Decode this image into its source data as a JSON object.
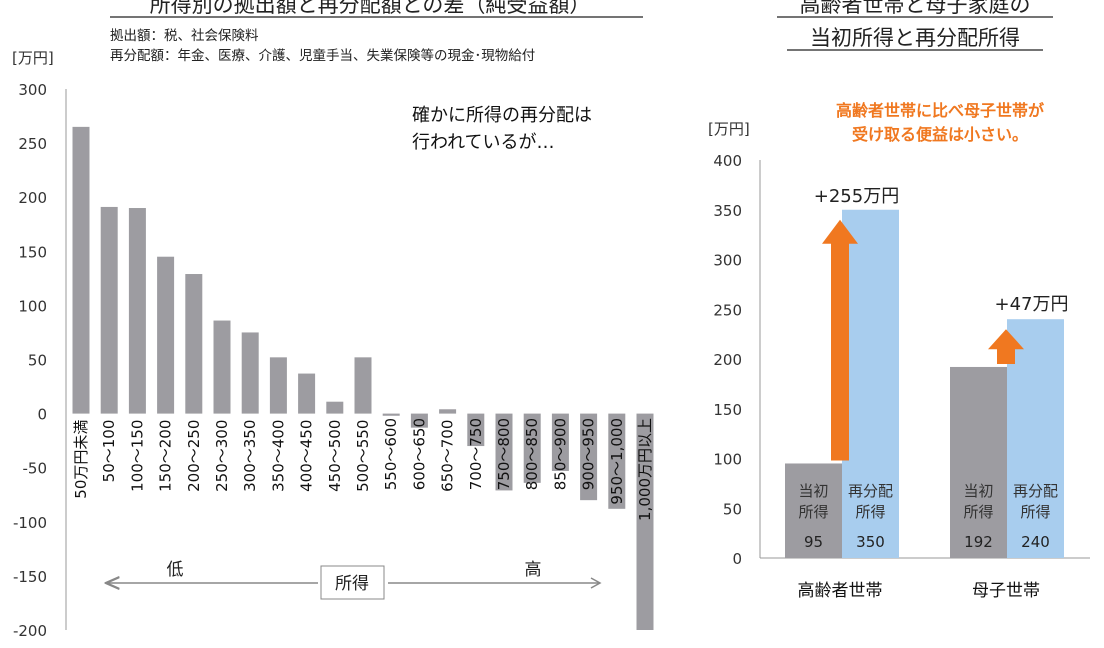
{
  "left_chart": {
    "title": "所得別の拠出額と再分配額との差（純受益額）",
    "note_contrib": "拠出額：税、社会保険料",
    "note_redistrib": "再分配額：年金、医療、介護、児童手当、失業保険等の現金･現物給付",
    "unit": "[万円]",
    "callout_line1": "確かに所得の再分配は",
    "callout_line2": "行われているが…",
    "arrow_low": "低",
    "arrow_high": "高",
    "arrow_center": "所得",
    "bar_color": "#9d9ca1"
  },
  "right_chart": {
    "title_line1": "高齢者世帯と母子家庭の",
    "title_line2": "当初所得と再分配所得",
    "unit": "[万円]",
    "highlight_line1": "高齢者世帯に比べ母子世帯が",
    "highlight_line2": "受け取る便益は小さい。",
    "highlight_color": "#f07820",
    "initial_color": "#9d9ca1",
    "redistrib_color": "#a8cdee"
  },
  "chart_data": [
    {
      "type": "bar",
      "categories": [
        "50万円未満",
        "50～100",
        "100～150",
        "150～200",
        "200～250",
        "250～300",
        "300～350",
        "350～400",
        "400～450",
        "450～500",
        "500～550",
        "550～600",
        "600～650",
        "650～700",
        "700～750",
        "750～800",
        "800～850",
        "850～900",
        "900～950",
        "950～1,000",
        "1,000万円以上"
      ],
      "values": [
        265,
        191,
        190,
        145,
        129,
        86,
        75,
        52,
        37,
        11,
        52,
        -2,
        -13,
        4,
        -30,
        -71,
        -64,
        -53,
        -80,
        -88,
        -200
      ],
      "ylim": [
        -200,
        300
      ],
      "yticks": [
        300,
        250,
        200,
        150,
        100,
        50,
        0,
        -50,
        -100,
        -150,
        -200
      ]
    },
    {
      "type": "bar",
      "categories": [
        "高齢者世帯",
        "母子世帯"
      ],
      "series": [
        {
          "name": "当初所得",
          "values": [
            95,
            192
          ]
        },
        {
          "name": "再分配所得",
          "values": [
            350,
            240
          ]
        }
      ],
      "data_labels_initial": [
        "95",
        "192"
      ],
      "data_labels_redistrib": [
        "350",
        "240"
      ],
      "diff_labels": [
        "+255万円",
        "+47万円"
      ],
      "ylim": [
        0,
        400
      ],
      "yticks": [
        400,
        350,
        300,
        250,
        200,
        150,
        100,
        50,
        0
      ]
    }
  ]
}
